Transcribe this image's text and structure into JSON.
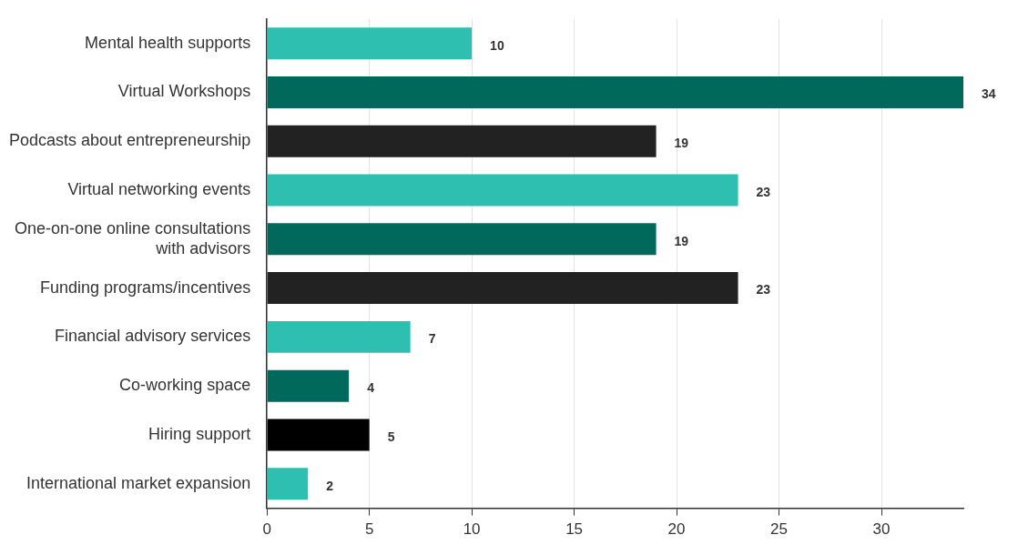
{
  "chart_data": {
    "type": "bar",
    "orientation": "horizontal",
    "categories": [
      "Mental health supports",
      "Virtual Workshops",
      "Podcasts about entrepreneurship",
      "Virtual networking events",
      "One-on-one online consultations with advisors",
      "Funding programs/incentives",
      "Financial advisory services",
      "Co-working space",
      "Hiring support",
      "International market expansion"
    ],
    "values": [
      10,
      34,
      19,
      23,
      19,
      23,
      7,
      4,
      5,
      2
    ],
    "colors": [
      "#2ebfb1",
      "#00695c",
      "#222222",
      "#2ebfb1",
      "#00695c",
      "#222222",
      "#2ebfb1",
      "#00695c",
      "#000000",
      "#2ebfb1"
    ],
    "xlim": [
      0,
      34
    ],
    "xticks": [
      0,
      5,
      10,
      15,
      20,
      25,
      30
    ],
    "grid": "x",
    "data_labels": true,
    "legend": false
  }
}
